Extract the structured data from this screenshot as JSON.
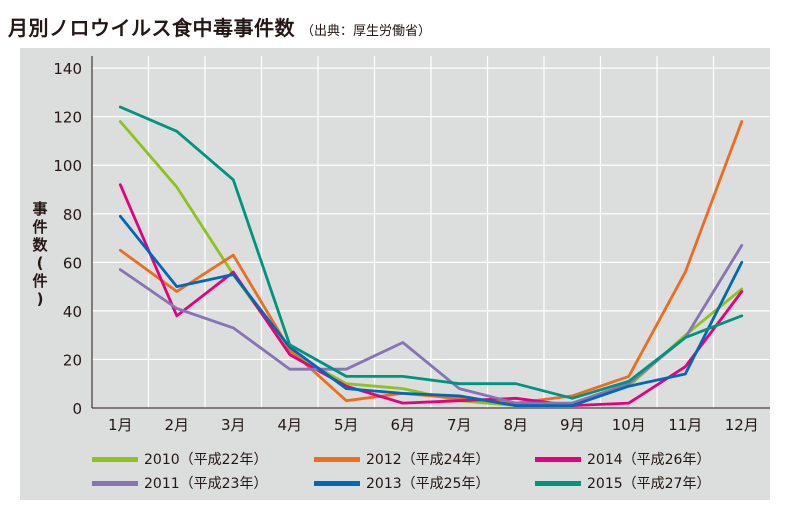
{
  "title": "月別ノロウイルス食中毒事件数",
  "subtitle": "（出典：厚生労働省）",
  "chart_data": {
    "type": "line",
    "title": "月別ノロウイルス食中毒事件数",
    "subtitle": "（出典：厚生労働省）",
    "xlabel": "",
    "ylabel": "事件数（件）",
    "ylabel_chars": [
      "事",
      "件",
      "数",
      "(",
      "件",
      ")"
    ],
    "categories": [
      "1月",
      "2月",
      "3月",
      "4月",
      "5月",
      "6月",
      "7月",
      "8月",
      "9月",
      "10月",
      "11月",
      "12月"
    ],
    "ylim": [
      0,
      145
    ],
    "yticks": [
      "0",
      "20",
      "40",
      "60",
      "80",
      "100",
      "120",
      "140"
    ],
    "grid": true,
    "legend_position": "bottom",
    "series": [
      {
        "name": "2010（平成22年）",
        "color": "#8dc21f",
        "values": [
          118,
          91,
          55,
          23,
          10,
          8,
          3,
          1,
          2,
          9,
          30,
          49
        ]
      },
      {
        "name": "2012（平成24年）",
        "color": "#ed6d1f",
        "values": [
          65,
          48,
          63,
          24,
          3,
          6,
          4,
          2,
          5,
          13,
          56,
          118
        ]
      },
      {
        "name": "2014（平成26年）",
        "color": "#e4007f",
        "values": [
          92,
          38,
          56,
          22,
          9,
          2,
          3,
          4,
          1,
          2,
          17,
          48
        ]
      },
      {
        "name": "2011（平成23年）",
        "color": "#8674b5",
        "values": [
          57,
          41,
          33,
          16,
          16,
          27,
          8,
          2,
          2,
          10,
          29,
          67
        ]
      },
      {
        "name": "2013（平成25年）",
        "color": "#0068b7",
        "values": [
          79,
          50,
          55,
          25,
          8,
          6,
          5,
          1,
          1,
          9,
          14,
          60
        ]
      },
      {
        "name": "2015（平成27年）",
        "color": "#00937e",
        "values": [
          124,
          114,
          94,
          26,
          13,
          13,
          10,
          10,
          4,
          11,
          29,
          38
        ]
      }
    ]
  }
}
